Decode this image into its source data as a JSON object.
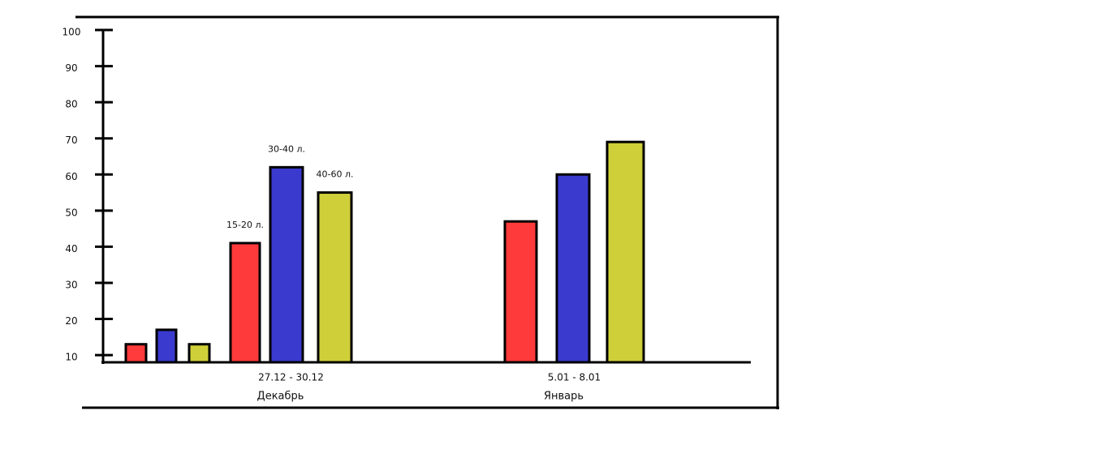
{
  "chart_data": {
    "type": "bar",
    "categories": [
      null,
      "27.12 - 30.12",
      "5.01 - 8.01"
    ],
    "months": [
      null,
      "Декабрь",
      "Январь"
    ],
    "series": [
      {
        "name": "15-20 л.",
        "color": "#ff3a3a",
        "values": [
          13,
          41,
          47
        ]
      },
      {
        "name": "30-40 л.",
        "color": "#3a3acf",
        "values": [
          17,
          62,
          60
        ]
      },
      {
        "name": "40-60 л.",
        "color": "#cfcf3a",
        "values": [
          13,
          55,
          69
        ]
      }
    ],
    "ylim": [
      8,
      100
    ],
    "yticks": [
      10,
      20,
      30,
      40,
      50,
      60,
      70,
      80,
      90,
      100
    ]
  }
}
